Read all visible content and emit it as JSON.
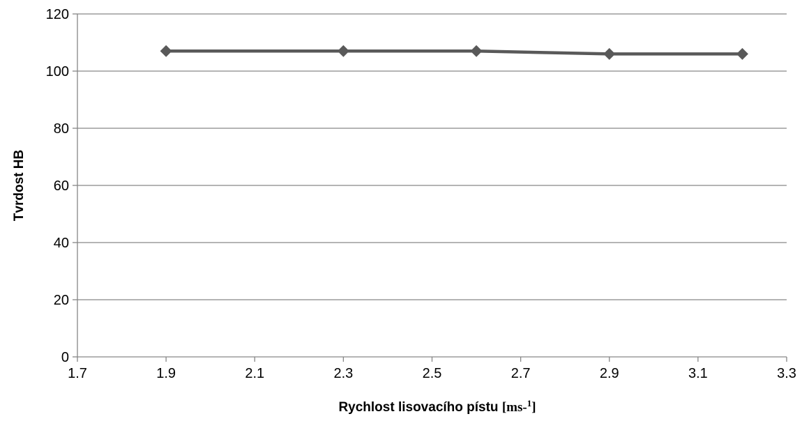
{
  "chart_data": {
    "type": "scatter",
    "title": "",
    "xlabel_text": "Rychlost lisovacího pístu",
    "xlabel_unit_open": "[",
    "xlabel_unit_base": "ms-",
    "xlabel_unit_exp": "1",
    "xlabel_unit_close": "]",
    "ylabel": "Tvrdost HB",
    "xlim": [
      1.7,
      3.3
    ],
    "ylim": [
      0,
      120
    ],
    "x_ticks": [
      "1.7",
      "1.9",
      "2.1",
      "2.3",
      "2.5",
      "2.7",
      "2.9",
      "3.1",
      "3.3"
    ],
    "y_ticks": [
      "0",
      "20",
      "40",
      "60",
      "80",
      "100",
      "120"
    ],
    "grid": "horizontal",
    "legend": "none",
    "series": [
      {
        "x": [
          1.9,
          2.3,
          2.6,
          2.9,
          3.2
        ],
        "y": [
          107,
          107,
          107,
          106,
          106
        ],
        "marker": "diamond",
        "line": true,
        "color": "#595959"
      }
    ],
    "colors": {
      "grid": "#868686",
      "axis": "#868686",
      "series": "#595959"
    }
  }
}
